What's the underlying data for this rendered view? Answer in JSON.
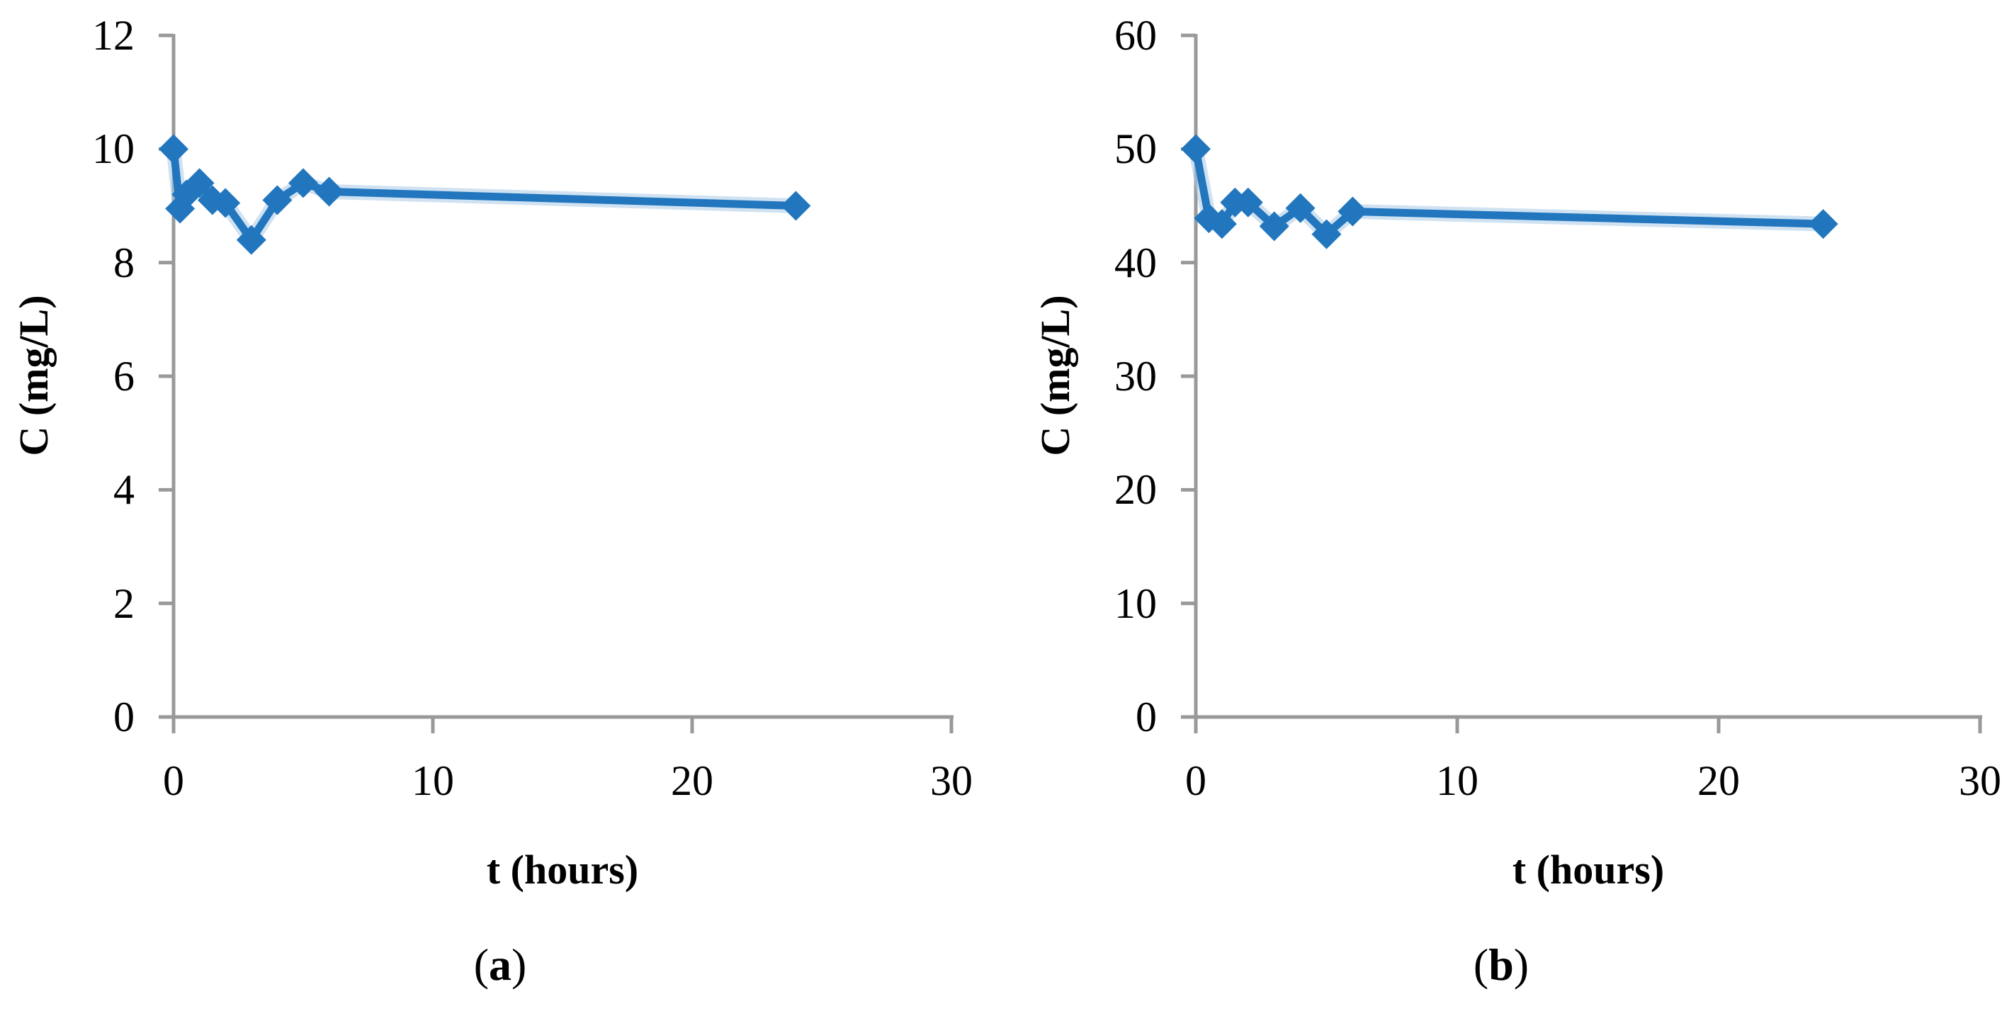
{
  "figure": {
    "background": "#ffffff",
    "line_color": "#2176BE",
    "halo_color": "#A9CBE8",
    "marker_color": "#2176BE",
    "axis_color": "#999999",
    "text_color": "#000000",
    "marker_shape": "diamond"
  },
  "chart_data": [
    {
      "id": "a",
      "type": "line",
      "title": "",
      "xlabel": "t (hours)",
      "ylabel": "C (mg/L)",
      "caption": {
        "open": "(",
        "letter": "a",
        "close": ")"
      },
      "xlim": [
        0,
        30
      ],
      "ylim": [
        0,
        12
      ],
      "x_ticks": [
        0,
        10,
        20,
        30
      ],
      "y_ticks": [
        0,
        2,
        4,
        6,
        8,
        10,
        12
      ],
      "grid": false,
      "legend": "none",
      "points": [
        [
          0,
          10.0
        ],
        [
          0.25,
          8.95
        ],
        [
          0.5,
          9.2
        ],
        [
          1,
          9.4
        ],
        [
          1.5,
          9.1
        ],
        [
          2,
          9.05
        ],
        [
          3,
          8.4
        ],
        [
          4,
          9.1
        ],
        [
          5,
          9.4
        ],
        [
          6,
          9.25
        ],
        [
          24,
          9.0
        ]
      ]
    },
    {
      "id": "b",
      "type": "line",
      "title": "",
      "xlabel": "t (hours)",
      "ylabel": "C (mg/L)",
      "caption": {
        "open": "(",
        "letter": "b",
        "close": ")"
      },
      "xlim": [
        0,
        30
      ],
      "ylim": [
        0,
        60
      ],
      "x_ticks": [
        0,
        10,
        20,
        30
      ],
      "y_ticks": [
        0,
        10,
        20,
        30,
        40,
        50,
        60
      ],
      "grid": false,
      "legend": "none",
      "points": [
        [
          0,
          50.0
        ],
        [
          0.5,
          43.9
        ],
        [
          1,
          43.4
        ],
        [
          1.5,
          45.3
        ],
        [
          2,
          45.3
        ],
        [
          3,
          43.2
        ],
        [
          4,
          44.8
        ],
        [
          5,
          42.5
        ],
        [
          6,
          44.5
        ],
        [
          24,
          43.4
        ]
      ]
    }
  ]
}
